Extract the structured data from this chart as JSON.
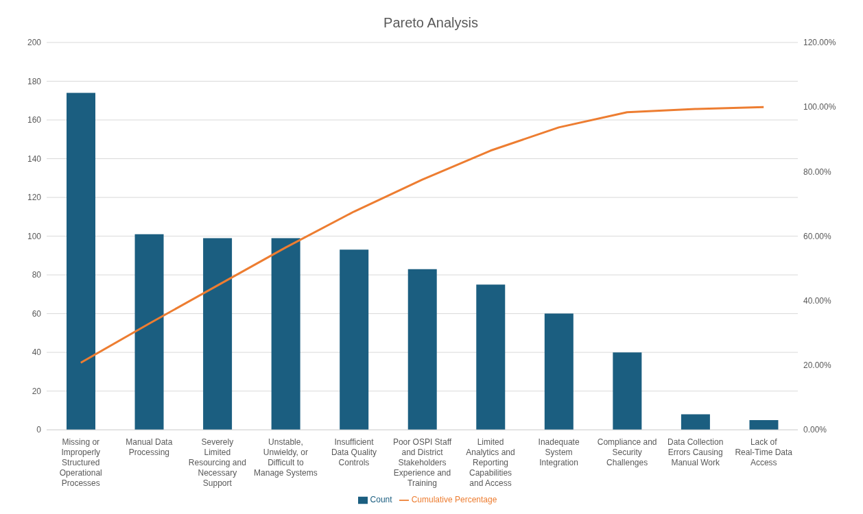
{
  "chart_data": {
    "type": "bar",
    "title": "Pareto Analysis",
    "categories": [
      "Missing or Improperly Structured Operational Processes",
      "Manual Data Processing",
      "Severely Limited Resourcing and Necessary Support",
      "Unstable, Unwieldy, or Difficult to Manage Systems",
      "Insufficient Data Quality Controls",
      "Poor OSPI Staff and District Stakeholders Experience and Training",
      "Limited Analytics and Reporting Capabilities and Access",
      "Inadequate System Integration",
      "Compliance and Security Challenges",
      "Data Collection Errors Causing Manual Work",
      "Lack of Real-Time Data Access"
    ],
    "series": [
      {
        "name": "Count",
        "color": "#1b5e80",
        "values": [
          174,
          101,
          99,
          99,
          93,
          83,
          75,
          60,
          40,
          8,
          5
        ]
      },
      {
        "name": "Cumulative Percentage",
        "type": "line",
        "axis": "y2",
        "color": "#ed7d31",
        "values": [
          20.8,
          32.9,
          44.7,
          56.5,
          67.6,
          77.5,
          86.5,
          93.7,
          98.4,
          99.4,
          100
        ]
      }
    ],
    "ylim": [
      0,
      200
    ],
    "yticks": [
      0,
      20,
      40,
      60,
      80,
      100,
      120,
      140,
      160,
      180,
      200
    ],
    "y2lim": [
      0,
      120
    ],
    "y2ticks": [
      {
        "value": 0,
        "label": "0.00%"
      },
      {
        "value": 20,
        "label": "20.00%"
      },
      {
        "value": 40,
        "label": "40.00%"
      },
      {
        "value": 60,
        "label": "60.00%"
      },
      {
        "value": 80,
        "label": "80.00%"
      },
      {
        "value": 100,
        "label": "100.00%"
      },
      {
        "value": 120,
        "label": "120.00%"
      }
    ],
    "grid": "y",
    "legend": "bottom",
    "marker": "none"
  }
}
